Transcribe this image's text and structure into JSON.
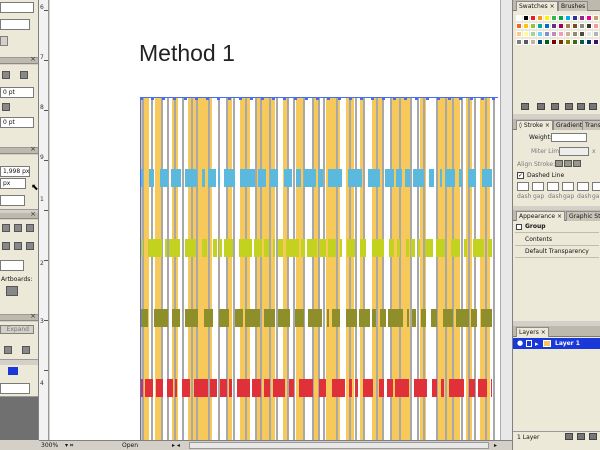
{
  "left_panel": {
    "field_0pt_a": "0 pt",
    "field_0pt_b": "0 pt",
    "field_px_a": "1,998 px",
    "field_px_b": "px",
    "artboards_label": "Artboards:",
    "expand_label": "Expand"
  },
  "canvas": {
    "title": "Method 1",
    "ruler_numbers": [
      "6",
      "7",
      "8",
      "9",
      "1",
      "2",
      "3",
      "4"
    ]
  },
  "swatches_panel": {
    "tabs": [
      "Swatches",
      "Brushes"
    ],
    "colors": [
      "#ffffff",
      "#000000",
      "#ed1c24",
      "#f7941d",
      "#fff200",
      "#39b54a",
      "#00a651",
      "#00aeef",
      "#2e3192",
      "#92278f",
      "#ec008c",
      "#c69c6d",
      "#f26522",
      "#ffc20e",
      "#8dc63f",
      "#00a99d",
      "#0072bc",
      "#662d91",
      "#9e005d",
      "#a67c52",
      "#754c24",
      "#898989",
      "#363636",
      "#f5989d",
      "#fdc689",
      "#fff799",
      "#a3d39c",
      "#6dcff6",
      "#8393ca",
      "#bd8cbf",
      "#f49ac1",
      "#c7b299",
      "#998675",
      "#534741",
      "#e6e6e6",
      "#b3b3b3",
      "#7d7d7d",
      "#58595b",
      "#c2b59b",
      "#004a80",
      "#005e20",
      "#7d0000",
      "#7b2e00",
      "#827b00",
      "#406618",
      "#005952",
      "#003471",
      "#440e62"
    ]
  },
  "stroke_panel": {
    "tabs": [
      "Stroke",
      "Gradient",
      "Transparency"
    ],
    "weight_label": "Weight:",
    "miter_label": "Miter Limit:",
    "miter_suffix": "x",
    "align_label": "Align Stroke:",
    "dashed_label": "Dashed Line",
    "dash_labels": [
      "dash",
      "gap",
      "dash",
      "gap",
      "dash",
      "gap"
    ]
  },
  "appearance_panel": {
    "tabs": [
      "Appearance",
      "Graphic Styles"
    ],
    "rows": [
      "Group",
      "Contents",
      "Default Transparency"
    ]
  },
  "layers_panel": {
    "tabs": [
      "Layers"
    ],
    "layer_name": "Layer 1",
    "footer": "1 Layer"
  },
  "status_bar": {
    "zoom": "300%",
    "state": "Open"
  },
  "colors": {
    "yellow": "#f7c85a",
    "blue": "#5bb9dd",
    "lime": "#c2d21f",
    "olive": "#8e8e2a",
    "red": "#e0303a",
    "gray_line": "#a8a8a8",
    "selection": "#4a6cf0"
  }
}
